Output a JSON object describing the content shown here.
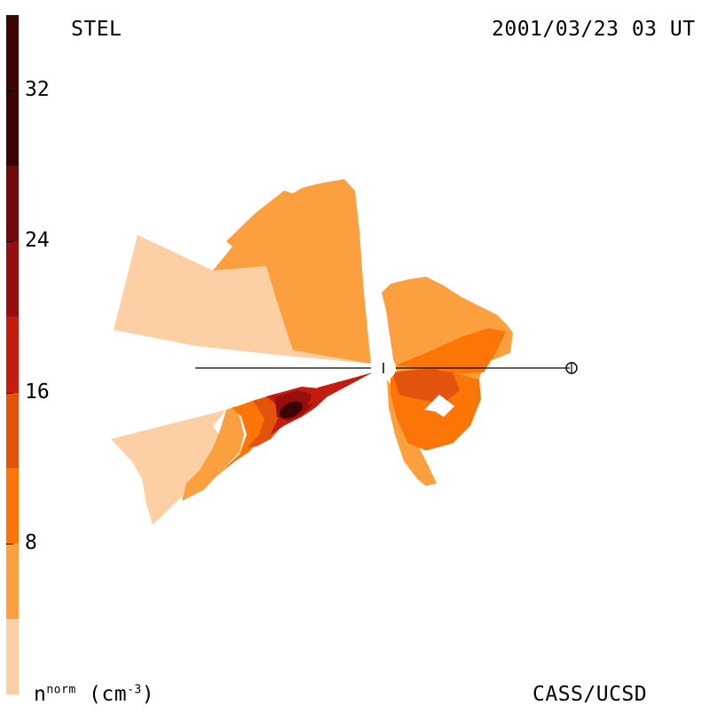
{
  "header": {
    "observatory": "STEL",
    "datetime": "2001/03/23 03 UT"
  },
  "footer": {
    "credit": "CASS/UCSD"
  },
  "colorbar": {
    "label_main": "n",
    "label_sup": "norm",
    "label_unit_open": " (cm",
    "label_unit_sup": "-3",
    "label_unit_close": ")",
    "ticks": [
      "8",
      "16",
      "24",
      "32"
    ],
    "colors": [
      "#fcd0a4",
      "#fb9f3f",
      "#fb7607",
      "#e2530d",
      "#c41d10",
      "#960e0e",
      "#700909",
      "#3c0303"
    ]
  },
  "chart_data": {
    "type": "heatmap",
    "title": "STEL",
    "subtitle": "2001/03/23 03 UT",
    "description_units": "normalized density n_norm (cm^-3)",
    "value_range": [
      0,
      36
    ],
    "levels": [
      0,
      4,
      8,
      12,
      16,
      20,
      24,
      28,
      36
    ],
    "ecliptic_line": true,
    "markers": [
      "Sun (center)",
      "Earth (right)"
    ],
    "regions": [
      {
        "sector": "upper-left",
        "values_range": [
          2,
          8
        ]
      },
      {
        "sector": "upper",
        "values_range": [
          6,
          8
        ]
      },
      {
        "sector": "right",
        "values_range": [
          8,
          15
        ]
      },
      {
        "sector": "lower-right",
        "values_range": [
          6,
          14
        ]
      },
      {
        "sector": "lower-left",
        "values_range": [
          2,
          33
        ],
        "peak": 33
      }
    ]
  }
}
